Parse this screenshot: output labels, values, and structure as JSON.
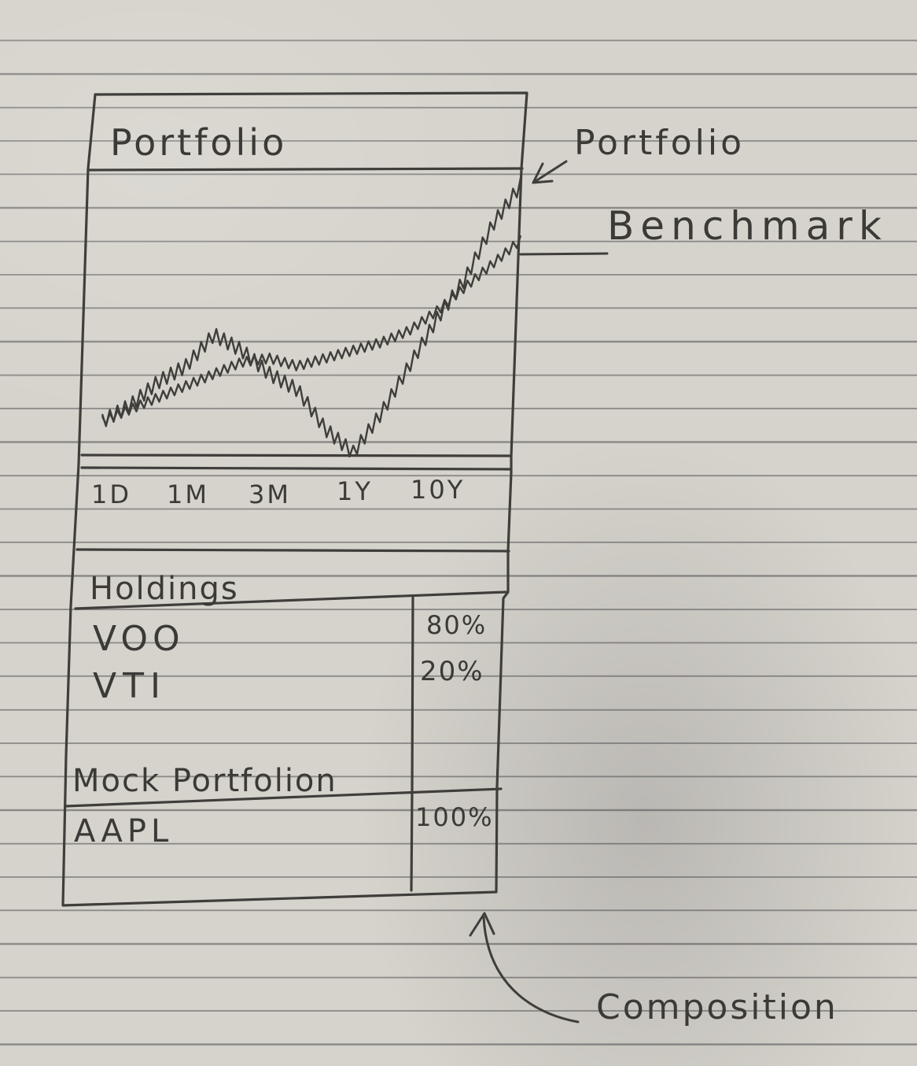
{
  "header": {
    "title": "Portfolio"
  },
  "chart_legend": {
    "portfolio_label": "Portfolio",
    "benchmark_label": "Benchmark"
  },
  "time_ranges": [
    "1D",
    "1M",
    "3M",
    "1Y",
    "10Y"
  ],
  "holdings": {
    "title": "Holdings",
    "items": [
      {
        "ticker": "VOO",
        "percent": "80%"
      },
      {
        "ticker": "VTI",
        "percent": "20%"
      }
    ]
  },
  "mock_portfolio": {
    "title": "Mock Portfolion",
    "items": [
      {
        "ticker": "AAPL",
        "percent": "100%"
      }
    ]
  },
  "annotations": {
    "composition_label": "Composition"
  },
  "chart_data": {
    "type": "line",
    "title": "",
    "series": [
      {
        "name": "Portfolio",
        "values": [
          10,
          14,
          20,
          24,
          32,
          28,
          22,
          18,
          8,
          2,
          12,
          24,
          36,
          46,
          60,
          70
        ]
      },
      {
        "name": "Benchmark",
        "values": [
          10,
          13,
          16,
          19,
          22,
          25,
          26,
          24,
          26,
          28,
          30,
          33,
          38,
          44,
          50,
          56
        ]
      }
    ]
  }
}
